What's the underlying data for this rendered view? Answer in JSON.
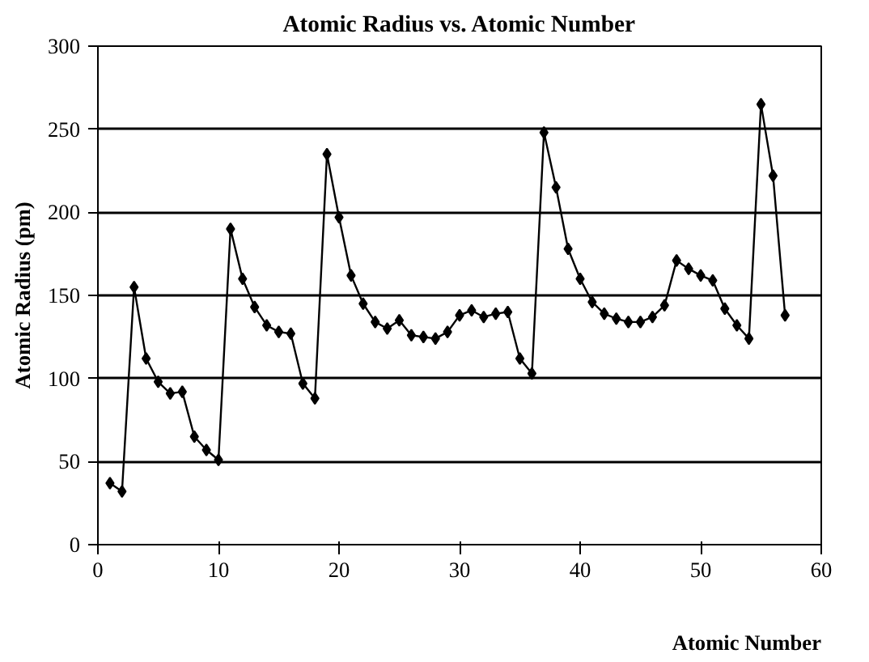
{
  "chart_data": {
    "type": "line",
    "title": "Atomic Radius vs. Atomic Number",
    "xlabel": "Atomic Number",
    "ylabel": "Atomic Radius (pm)",
    "x": [
      1,
      2,
      3,
      4,
      5,
      6,
      7,
      8,
      9,
      10,
      11,
      12,
      13,
      14,
      15,
      16,
      17,
      18,
      19,
      20,
      21,
      22,
      23,
      24,
      25,
      26,
      27,
      28,
      29,
      30,
      31,
      32,
      33,
      34,
      35,
      36,
      37,
      38,
      39,
      40,
      41,
      42,
      43,
      44,
      45,
      46,
      47,
      48,
      49,
      50,
      51,
      52,
      53,
      54,
      55,
      56,
      57
    ],
    "series": [
      {
        "color": "#000000",
        "values": [
          37,
          32,
          155,
          112,
          98,
          91,
          92,
          65,
          57,
          51,
          190,
          160,
          143,
          132,
          128,
          127,
          97,
          88,
          235,
          197,
          162,
          145,
          134,
          130,
          135,
          126,
          125,
          124,
          128,
          138,
          141,
          137,
          139,
          140,
          112,
          103,
          248,
          215,
          178,
          160,
          146,
          139,
          136,
          134,
          134,
          137,
          144,
          171,
          166,
          162,
          159,
          142,
          132,
          124,
          265,
          222,
          138
        ]
      }
    ],
    "xlim": [
      0,
      60
    ],
    "xticks": [
      0,
      10,
      20,
      30,
      40,
      50,
      60
    ],
    "ylim": [
      0,
      300
    ],
    "yticks": [
      0,
      50,
      100,
      150,
      200,
      250,
      300
    ],
    "grid": "y",
    "marker": "diamond",
    "line_style": "solid"
  }
}
